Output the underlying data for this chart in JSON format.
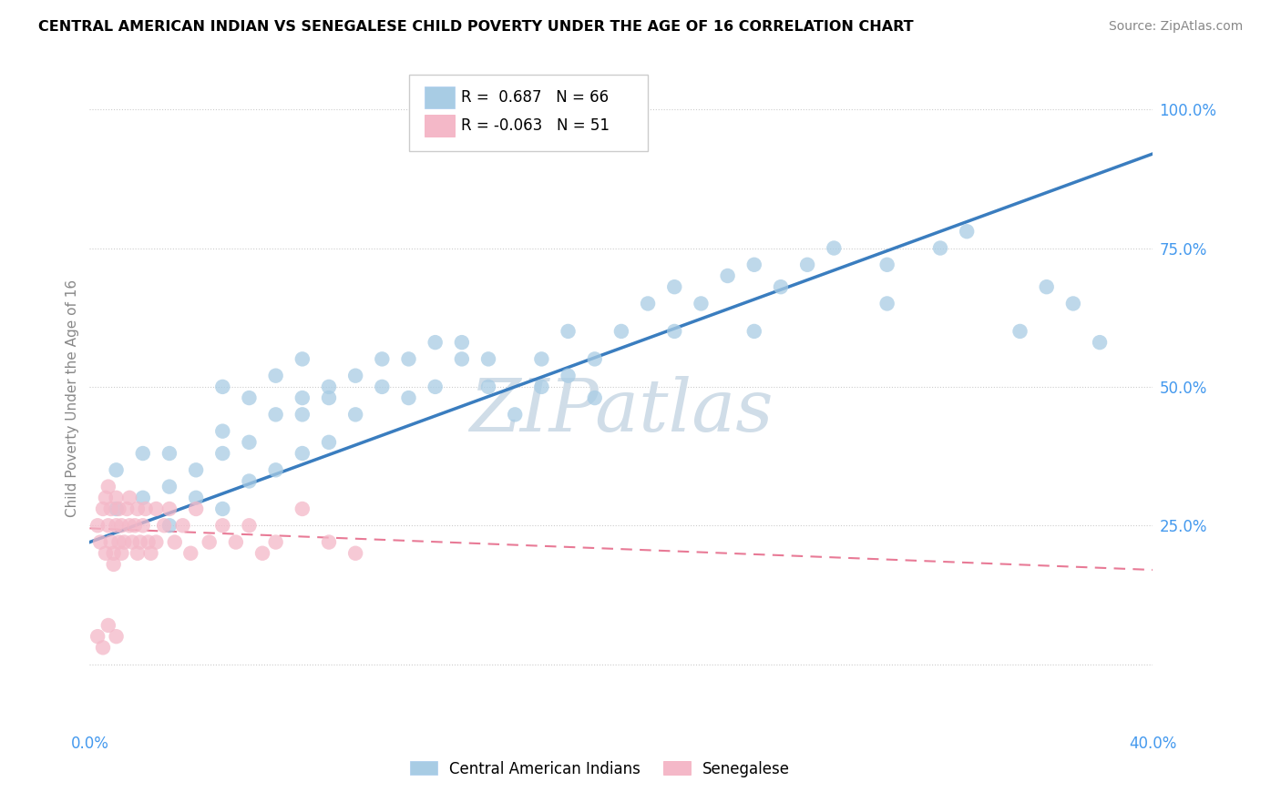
{
  "title": "CENTRAL AMERICAN INDIAN VS SENEGALESE CHILD POVERTY UNDER THE AGE OF 16 CORRELATION CHART",
  "source": "Source: ZipAtlas.com",
  "ylabel": "Child Poverty Under the Age of 16",
  "x_min": 0.0,
  "x_max": 0.4,
  "y_min": -0.12,
  "y_max": 1.08,
  "ytick_vals": [
    0.0,
    0.25,
    0.5,
    0.75,
    1.0
  ],
  "ytick_labels": [
    "",
    "25.0%",
    "50.0%",
    "75.0%",
    "100.0%"
  ],
  "watermark": "ZIPatlas",
  "blue_R": 0.687,
  "blue_N": 66,
  "pink_R": -0.063,
  "pink_N": 51,
  "blue_color": "#a8cce4",
  "pink_color": "#f4b8c8",
  "blue_line_color": "#3a7dbf",
  "pink_line_color": "#e87a96",
  "legend_blue_label": "Central American Indians",
  "legend_pink_label": "Senegalese",
  "blue_line_x0": 0.0,
  "blue_line_y0": 0.22,
  "blue_line_x1": 0.4,
  "blue_line_y1": 0.92,
  "pink_line_x0": 0.0,
  "pink_line_y0": 0.245,
  "pink_line_x1": 0.4,
  "pink_line_y1": 0.17
}
